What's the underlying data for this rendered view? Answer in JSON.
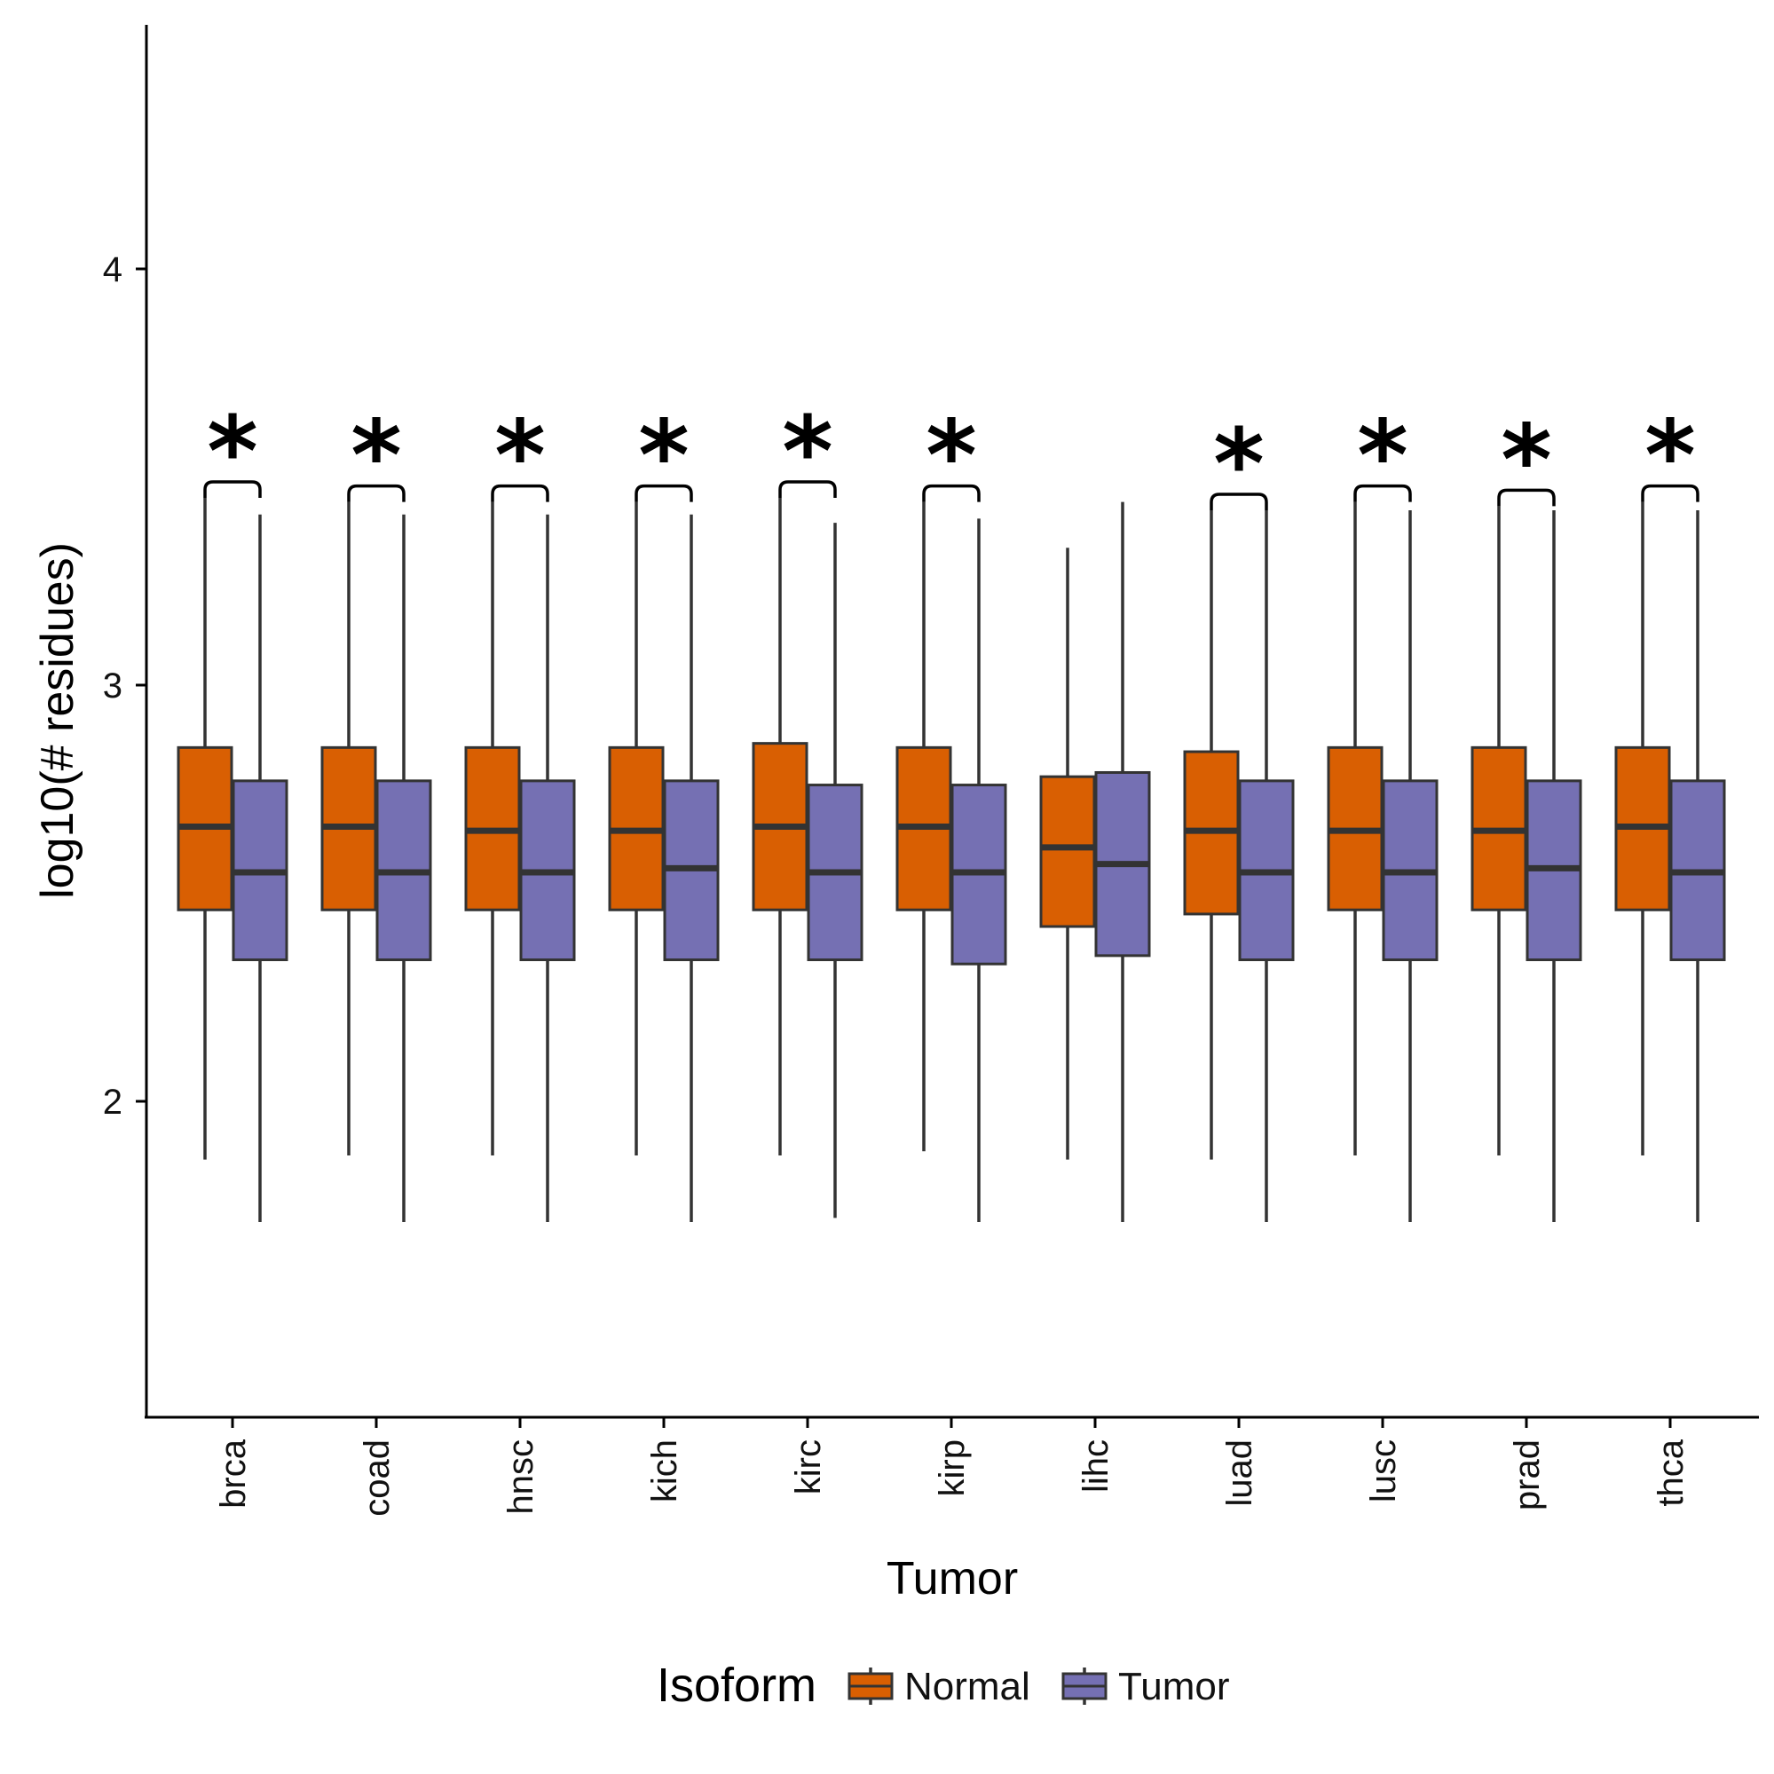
{
  "chart_data": {
    "type": "box",
    "title": "",
    "xlabel": "Tumor",
    "ylabel": "log10(# residues)",
    "ylim": [
      1.25,
      4.6
    ],
    "yticks": [
      "2",
      "3",
      "4"
    ],
    "grid": false,
    "legend": {
      "title": "Isoform",
      "position": "bottom"
    },
    "categories": [
      "brca",
      "coad",
      "hnsc",
      "kich",
      "kirc",
      "kirp",
      "lihc",
      "luad",
      "lusc",
      "prad",
      "thca"
    ],
    "series": [
      {
        "name": "Normal",
        "color": "#d95f02",
        "boxes": [
          {
            "min": 1.86,
            "q1": 2.46,
            "median": 2.66,
            "q3": 2.85,
            "max": 3.45
          },
          {
            "min": 1.87,
            "q1": 2.46,
            "median": 2.66,
            "q3": 2.85,
            "max": 3.44
          },
          {
            "min": 1.87,
            "q1": 2.46,
            "median": 2.65,
            "q3": 2.85,
            "max": 3.44
          },
          {
            "min": 1.87,
            "q1": 2.46,
            "median": 2.65,
            "q3": 2.85,
            "max": 3.44
          },
          {
            "min": 1.87,
            "q1": 2.46,
            "median": 2.66,
            "q3": 2.86,
            "max": 3.45
          },
          {
            "min": 1.88,
            "q1": 2.46,
            "median": 2.66,
            "q3": 2.85,
            "max": 3.44
          },
          {
            "min": 1.86,
            "q1": 2.42,
            "median": 2.61,
            "q3": 2.78,
            "max": 3.33
          },
          {
            "min": 1.86,
            "q1": 2.45,
            "median": 2.65,
            "q3": 2.84,
            "max": 3.42
          },
          {
            "min": 1.87,
            "q1": 2.46,
            "median": 2.65,
            "q3": 2.85,
            "max": 3.44
          },
          {
            "min": 1.87,
            "q1": 2.46,
            "median": 2.65,
            "q3": 2.85,
            "max": 3.43
          },
          {
            "min": 1.87,
            "q1": 2.46,
            "median": 2.66,
            "q3": 2.85,
            "max": 3.44
          }
        ]
      },
      {
        "name": "Tumor",
        "color": "#7570b3",
        "boxes": [
          {
            "min": 1.71,
            "q1": 2.34,
            "median": 2.55,
            "q3": 2.77,
            "max": 3.41
          },
          {
            "min": 1.71,
            "q1": 2.34,
            "median": 2.55,
            "q3": 2.77,
            "max": 3.41
          },
          {
            "min": 1.71,
            "q1": 2.34,
            "median": 2.55,
            "q3": 2.77,
            "max": 3.41
          },
          {
            "min": 1.71,
            "q1": 2.34,
            "median": 2.56,
            "q3": 2.77,
            "max": 3.41
          },
          {
            "min": 1.72,
            "q1": 2.34,
            "median": 2.55,
            "q3": 2.76,
            "max": 3.39
          },
          {
            "min": 1.71,
            "q1": 2.33,
            "median": 2.55,
            "q3": 2.76,
            "max": 3.4
          },
          {
            "min": 1.71,
            "q1": 2.35,
            "median": 2.57,
            "q3": 2.79,
            "max": 3.44
          },
          {
            "min": 1.71,
            "q1": 2.34,
            "median": 2.55,
            "q3": 2.77,
            "max": 3.42
          },
          {
            "min": 1.71,
            "q1": 2.34,
            "median": 2.55,
            "q3": 2.77,
            "max": 3.42
          },
          {
            "min": 1.71,
            "q1": 2.34,
            "median": 2.56,
            "q3": 2.77,
            "max": 3.42
          },
          {
            "min": 1.71,
            "q1": 2.34,
            "median": 2.55,
            "q3": 2.77,
            "max": 3.42
          }
        ]
      }
    ],
    "significance": {
      "symbol": "*",
      "categories": [
        "brca",
        "coad",
        "hnsc",
        "kich",
        "kirc",
        "kirp",
        "luad",
        "lusc",
        "prad",
        "thca"
      ]
    }
  }
}
